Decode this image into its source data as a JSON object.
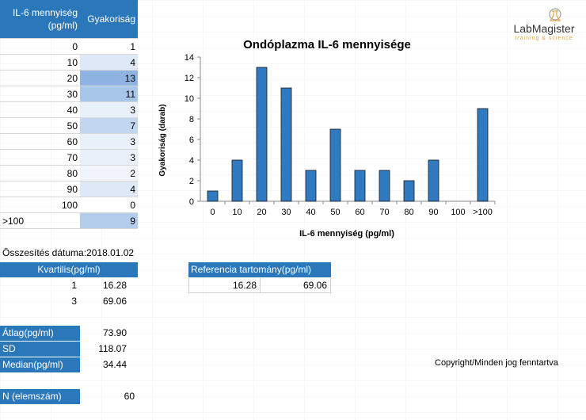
{
  "freq_table": {
    "header_col1": "IL-6 mennyiség (pg/ml)",
    "header_col2": "Gyakoriság",
    "rows": [
      {
        "bin": "0",
        "count": "1",
        "shade": "#ffffff"
      },
      {
        "bin": "10",
        "count": "4",
        "shade": "#dfe8f6"
      },
      {
        "bin": "20",
        "count": "13",
        "shade": "#8fb4e3"
      },
      {
        "bin": "30",
        "count": "11",
        "shade": "#a8c5ea"
      },
      {
        "bin": "40",
        "count": "3",
        "shade": "#eaf0fa"
      },
      {
        "bin": "50",
        "count": "7",
        "shade": "#c3d6f0"
      },
      {
        "bin": "60",
        "count": "3",
        "shade": "#eaf0fa"
      },
      {
        "bin": "70",
        "count": "3",
        "shade": "#eaf0fa"
      },
      {
        "bin": "80",
        "count": "2",
        "shade": "#f1f5fb"
      },
      {
        "bin": "90",
        "count": "4",
        "shade": "#dfe8f6"
      },
      {
        "bin": "100",
        "count": "0",
        "shade": "#ffffff"
      },
      {
        "bin": ">100",
        "count": "9",
        "shade": "#b4cdec"
      }
    ]
  },
  "summary_date_label": "Összesítés dátuma:",
  "summary_date": "2018.01.02",
  "quartiles": {
    "header": "Kvartilis(pg/ml)",
    "rows": [
      {
        "q": "1",
        "value": "16.28"
      },
      {
        "q": "3",
        "value": "69.06"
      }
    ]
  },
  "reference": {
    "header": "Referencia tartomány(pg/ml)",
    "low": "16.28",
    "high": "69.06"
  },
  "stats": [
    {
      "label": "Átlag(pg/ml)",
      "value": "73.90"
    },
    {
      "label": "SD",
      "value": "118.07"
    },
    {
      "label": "Median(pg/ml)",
      "value": "34.44"
    }
  ],
  "n": {
    "label": "N (elemszám)",
    "value": "60"
  },
  "copyright": "Copyright/Minden jog fenntartva",
  "logo": {
    "name": "LabMagister",
    "tagline": "training & science",
    "accent": "#e8a33a",
    "icon": "flask-logo-icon"
  },
  "colors": {
    "header_blue": "#2a77b9",
    "bar_blue": "#2f7ac0"
  },
  "chart_data": {
    "type": "bar",
    "title": "Ondóplazma IL-6 mennyisége",
    "xlabel": "IL-6 mennyiség (pg/ml)",
    "ylabel": "Gyakoriság  (darab)",
    "categories": [
      "0",
      "10",
      "20",
      "30",
      "40",
      "50",
      "60",
      "70",
      "80",
      "90",
      "100",
      ">100"
    ],
    "values": [
      1,
      4,
      13,
      11,
      3,
      7,
      3,
      3,
      2,
      4,
      0,
      9
    ],
    "ylim": [
      0,
      14
    ],
    "yticks": [
      "0",
      "2",
      "4",
      "6",
      "8",
      "10",
      "12",
      "14"
    ],
    "grid": false,
    "legend": "none"
  }
}
